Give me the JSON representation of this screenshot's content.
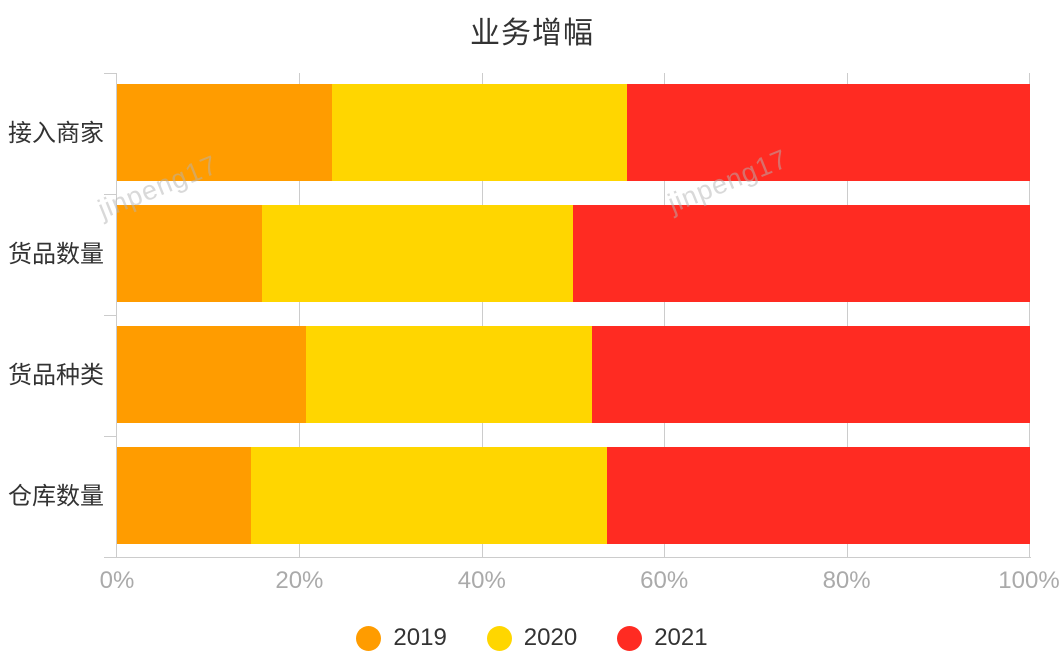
{
  "title": "业务增幅",
  "watermark": {
    "text": "jinpeng17"
  },
  "colors": {
    "axis": "#cccccc",
    "grid": "#cccccc",
    "tick_label": "#aaaaaa",
    "category_label": "#333333",
    "title": "#333333",
    "series_2019": "#FF9C00",
    "series_2020": "#FFD600",
    "series_2021": "#FF2B22"
  },
  "chart_data": {
    "type": "bar",
    "stacked": true,
    "percent_stacked": true,
    "orientation": "horizontal",
    "title": "业务增幅",
    "categories": [
      "接入商家",
      "货品数量",
      "货品种类",
      "仓库数量"
    ],
    "series": [
      {
        "name": "2019",
        "color": "#FF9C00",
        "values": [
          23.5,
          15.9,
          20.7,
          14.7
        ]
      },
      {
        "name": "2020",
        "color": "#FFD600",
        "values": [
          32.4,
          34.1,
          31.3,
          39.0
        ]
      },
      {
        "name": "2021",
        "color": "#FF2B22",
        "values": [
          44.1,
          50.0,
          48.0,
          46.3
        ]
      }
    ],
    "xlabel": "",
    "ylabel": "",
    "xlim": [
      0,
      100
    ],
    "x_tick_labels": [
      "0%",
      "20%",
      "40%",
      "60%",
      "80%",
      "100%"
    ],
    "x_tick_values": [
      0,
      20,
      40,
      60,
      80,
      100
    ],
    "grid": true,
    "legend_position": "bottom"
  }
}
